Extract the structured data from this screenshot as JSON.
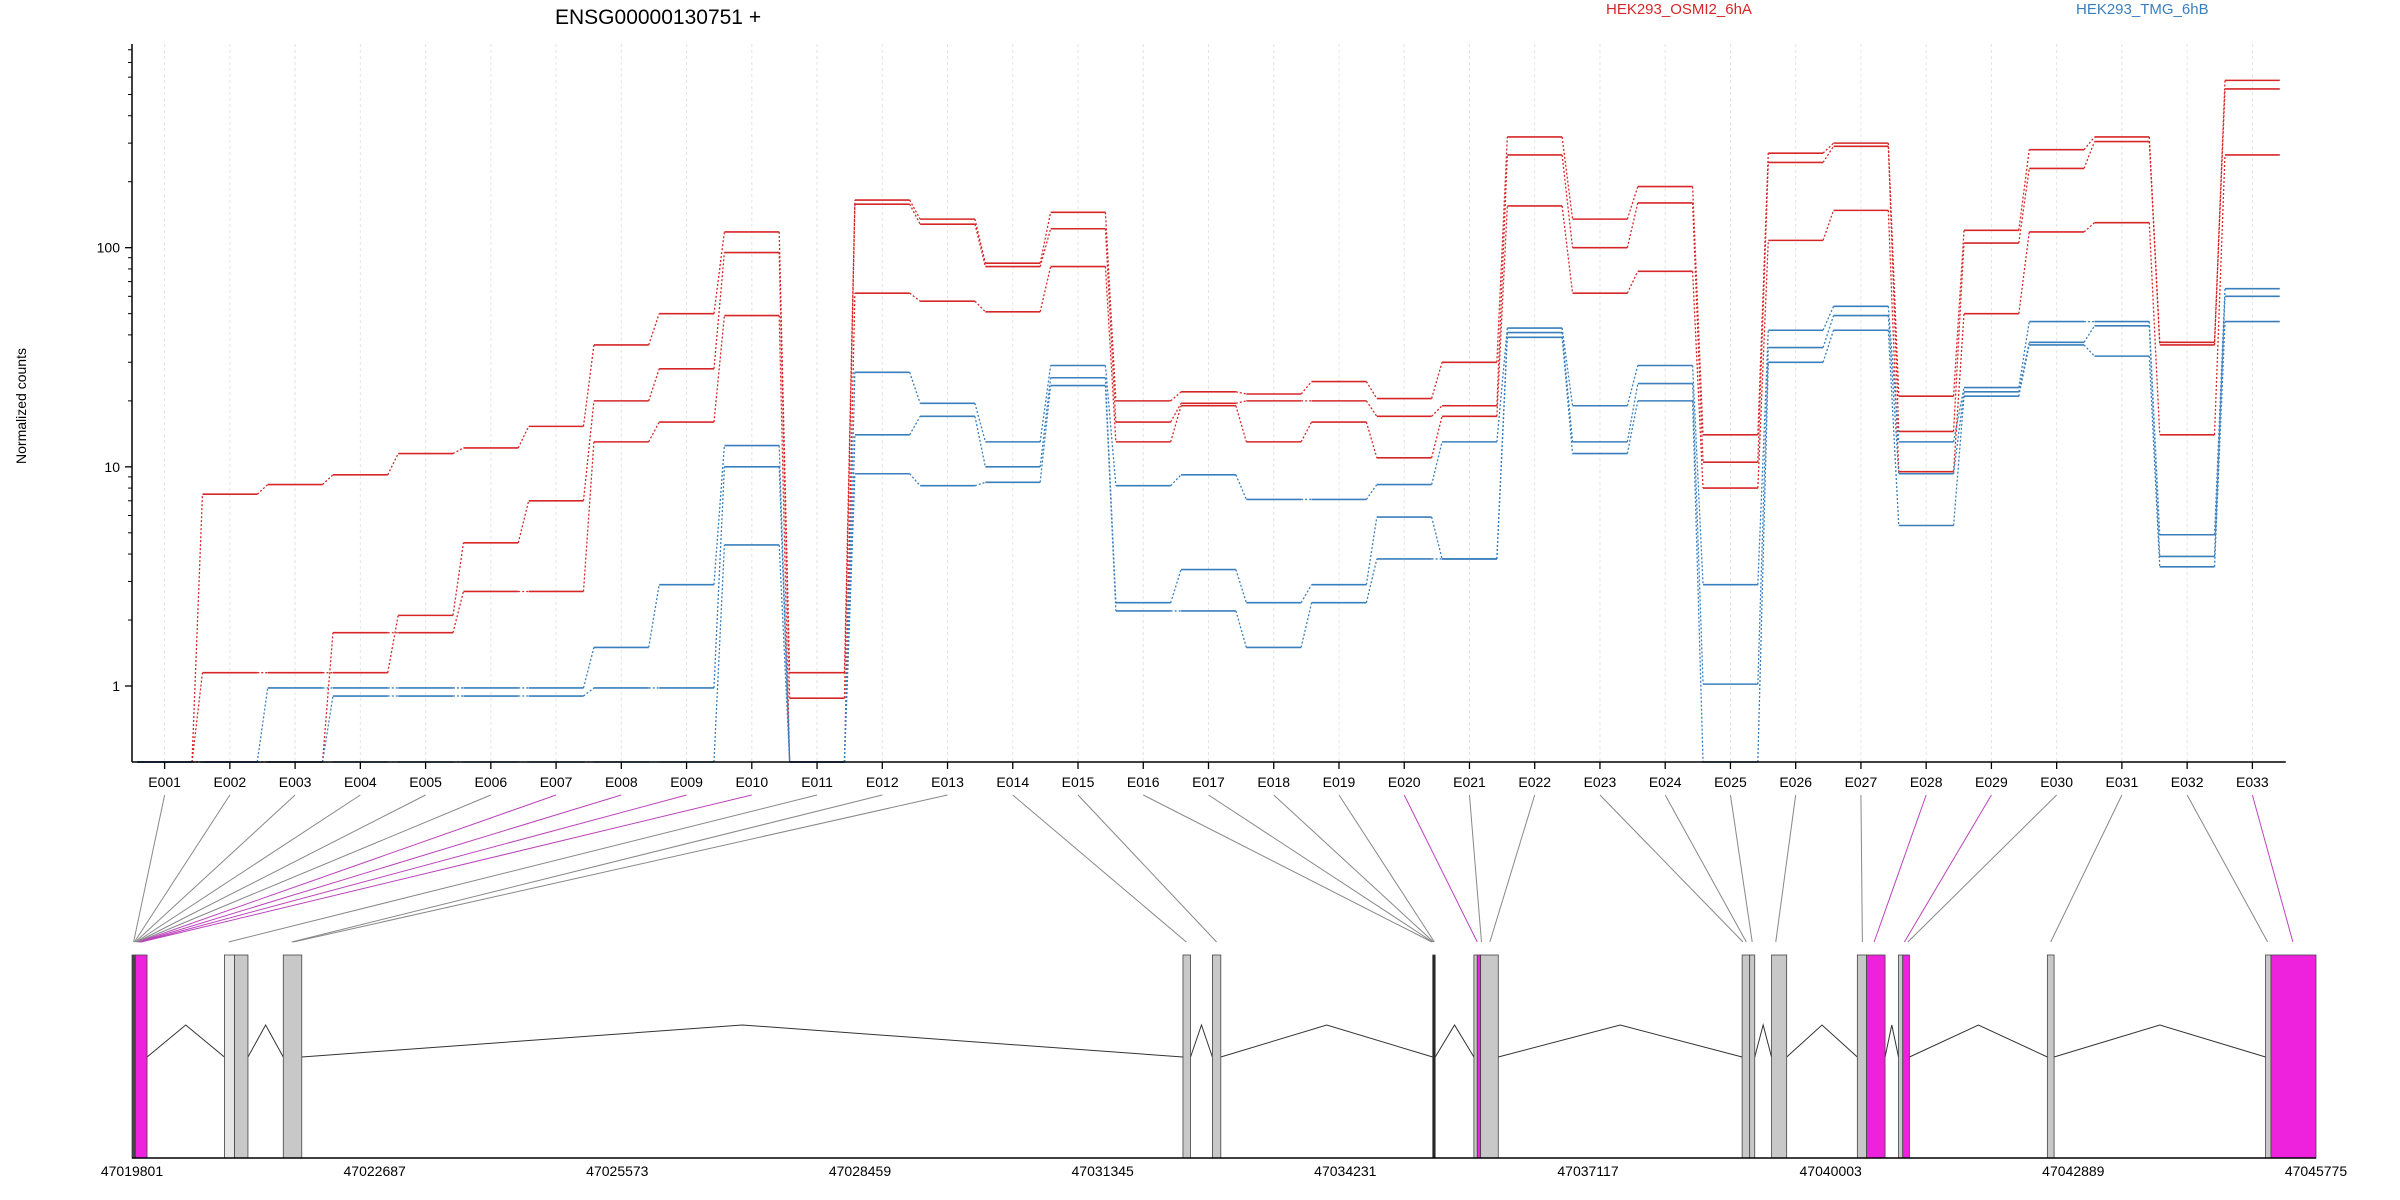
{
  "title": "ENSG00000130751 +",
  "ylabel": "Normalized counts",
  "legend": [
    {
      "name": "HEK293_OSMI2_6hA",
      "color": "#d62728"
    },
    {
      "name": "HEK293_TMG_6hB",
      "color": "#3a7fbd"
    }
  ],
  "chart_data": {
    "type": "line",
    "yscale": "log",
    "ylim": [
      0.45,
      850
    ],
    "yticks": [
      1,
      10,
      100
    ],
    "ytick_labels": [
      "1",
      "10",
      "100"
    ],
    "ylabel": "Normalized counts",
    "categories": [
      "E001",
      "E002",
      "E003",
      "E004",
      "E005",
      "E006",
      "E007",
      "E008",
      "E009",
      "E010",
      "E011",
      "E012",
      "E013",
      "E014",
      "E015",
      "E016",
      "E017",
      "E018",
      "E019",
      "E020",
      "E021",
      "E022",
      "E023",
      "E024",
      "E025",
      "E026",
      "E027",
      "E028",
      "E029",
      "E030",
      "E031",
      "E032",
      "E033"
    ],
    "series": [
      {
        "group": "HEK293_OSMI2_6hA",
        "color": "#d62728",
        "values": [
          0.45,
          7.5,
          8.3,
          9.2,
          11.5,
          12.2,
          15.3,
          36,
          50,
          118,
          1.15,
          165,
          135,
          85,
          145,
          20,
          22,
          21.5,
          24.5,
          20.5,
          30,
          320,
          135,
          190,
          14,
          270,
          300,
          21,
          120,
          280,
          320,
          37,
          580
        ]
      },
      {
        "group": "HEK293_OSMI2_6hA",
        "color": "#d62728",
        "values": [
          0.45,
          1.15,
          1.15,
          1.15,
          2.1,
          4.5,
          7,
          20,
          28,
          95,
          0.88,
          158,
          128,
          82,
          122,
          16,
          19.5,
          20,
          20,
          17,
          19,
          265,
          100,
          160,
          10.5,
          245,
          290,
          14.5,
          105,
          230,
          305,
          36,
          530
        ]
      },
      {
        "group": "HEK293_OSMI2_6hA",
        "color": "#d62728",
        "values": [
          0.45,
          0.45,
          0.45,
          1.75,
          1.75,
          2.7,
          2.7,
          13,
          16,
          49,
          0.45,
          62,
          57,
          51,
          82,
          13,
          19,
          13,
          16,
          11,
          17,
          155,
          62,
          78,
          8,
          108,
          148,
          9.5,
          50,
          118,
          130,
          14,
          265
        ]
      },
      {
        "group": "HEK293_TMG_6hB",
        "color": "#3a7fbd",
        "values": [
          0.45,
          0.45,
          0.98,
          0.98,
          0.98,
          0.98,
          0.98,
          1.5,
          2.9,
          12.5,
          0.45,
          27,
          19.5,
          13,
          29,
          8.2,
          9.2,
          7.1,
          7.1,
          8.3,
          13,
          43,
          19,
          29,
          2.9,
          42,
          54,
          13,
          23,
          46,
          46,
          4.9,
          65
        ]
      },
      {
        "group": "HEK293_TMG_6hB",
        "color": "#3a7fbd",
        "values": [
          0.45,
          0.45,
          0.45,
          0.9,
          0.9,
          0.9,
          0.9,
          0.98,
          0.98,
          10,
          0.45,
          14,
          17,
          10,
          25.5,
          2.4,
          3.4,
          2.4,
          2.9,
          5.9,
          3.8,
          41,
          13,
          24,
          1.02,
          35,
          49,
          9.3,
          22,
          37,
          44,
          3.9,
          60
        ]
      },
      {
        "group": "HEK293_TMG_6hB",
        "color": "#3a7fbd",
        "values": [
          0.45,
          0.45,
          0.45,
          0.45,
          0.45,
          0.45,
          0.45,
          0.45,
          0.45,
          4.4,
          0.45,
          9.3,
          8.2,
          8.5,
          23.5,
          2.2,
          2.2,
          1.5,
          2.4,
          3.8,
          3.8,
          39,
          11.5,
          20,
          0.45,
          30,
          42,
          5.4,
          21,
          36,
          32,
          3.5,
          46
        ]
      }
    ]
  },
  "gene_model": {
    "xrange": [
      47019801,
      47045775
    ],
    "coord_ticks": [
      {
        "value": 47019801,
        "label": "47019801"
      },
      {
        "value": 47022687,
        "label": "47022687"
      },
      {
        "value": 47025573,
        "label": "47025573"
      },
      {
        "value": 47028459,
        "label": "47028459"
      },
      {
        "value": 47031345,
        "label": "47031345"
      },
      {
        "value": 47034231,
        "label": "47034231"
      },
      {
        "value": 47037117,
        "label": "47037117"
      },
      {
        "value": 47040003,
        "label": "47040003"
      },
      {
        "value": 47042889,
        "label": "47042889"
      },
      {
        "value": 47045775,
        "label": "47045775"
      }
    ],
    "exon_blocks": [
      {
        "start": 47019801,
        "end": 47019842,
        "color": "#444444"
      },
      {
        "start": 47019842,
        "end": 47019980,
        "color": "#ee22dd"
      },
      {
        "start": 47020900,
        "end": 47021020,
        "color": "#e6e6e6"
      },
      {
        "start": 47021020,
        "end": 47021180,
        "color": "#c8c8c8"
      },
      {
        "start": 47021600,
        "end": 47021820,
        "color": "#c8c8c8"
      },
      {
        "start": 47032300,
        "end": 47032390,
        "color": "#c8c8c8"
      },
      {
        "start": 47032650,
        "end": 47032750,
        "color": "#c8c8c8"
      },
      {
        "start": 47035270,
        "end": 47035300,
        "color": "#222222"
      },
      {
        "start": 47035760,
        "end": 47035800,
        "color": "#c8c8c8"
      },
      {
        "start": 47035800,
        "end": 47035840,
        "color": "#ee22dd"
      },
      {
        "start": 47035840,
        "end": 47036050,
        "color": "#c8c8c8"
      },
      {
        "start": 47038950,
        "end": 47039040,
        "color": "#c8c8c8"
      },
      {
        "start": 47039040,
        "end": 47039100,
        "color": "#c8c8c8"
      },
      {
        "start": 47039300,
        "end": 47039480,
        "color": "#c8c8c8"
      },
      {
        "start": 47040320,
        "end": 47040430,
        "color": "#c8c8c8"
      },
      {
        "start": 47040430,
        "end": 47040650,
        "color": "#ee22dd"
      },
      {
        "start": 47040810,
        "end": 47040860,
        "color": "#c8c8c8"
      },
      {
        "start": 47040860,
        "end": 47040940,
        "color": "#ee22dd"
      },
      {
        "start": 47042580,
        "end": 47042660,
        "color": "#c8c8c8"
      },
      {
        "start": 47045175,
        "end": 47045240,
        "color": "#c8c8c8"
      },
      {
        "start": 47045240,
        "end": 47045775,
        "color": "#ee22dd"
      }
    ],
    "junctions": [
      [
        47019980,
        47020900
      ],
      [
        47021180,
        47021600
      ],
      [
        47021820,
        47032300
      ],
      [
        47032390,
        47032650
      ],
      [
        47032750,
        47035270
      ],
      [
        47035300,
        47035760
      ],
      [
        47036050,
        47038950
      ],
      [
        47039100,
        47039300
      ],
      [
        47039480,
        47040320
      ],
      [
        47040650,
        47040810
      ],
      [
        47040940,
        47042580
      ],
      [
        47042660,
        47045175
      ]
    ],
    "connectors": [
      {
        "exon": 0,
        "pos": 47019820,
        "color": "#888888"
      },
      {
        "exon": 1,
        "pos": 47019830,
        "color": "#888888"
      },
      {
        "exon": 2,
        "pos": 47019840,
        "color": "#888888"
      },
      {
        "exon": 3,
        "pos": 47019850,
        "color": "#888888"
      },
      {
        "exon": 4,
        "pos": 47019860,
        "color": "#888888"
      },
      {
        "exon": 5,
        "pos": 47019870,
        "color": "#888888"
      },
      {
        "exon": 6,
        "pos": 47019880,
        "color": "#bb44bb"
      },
      {
        "exon": 7,
        "pos": 47019890,
        "color": "#bb44bb"
      },
      {
        "exon": 8,
        "pos": 47019900,
        "color": "#bb44bb"
      },
      {
        "exon": 9,
        "pos": 47019910,
        "color": "#bb44bb"
      },
      {
        "exon": 10,
        "pos": 47020950,
        "color": "#888888"
      },
      {
        "exon": 11,
        "pos": 47021700,
        "color": "#888888"
      },
      {
        "exon": 12,
        "pos": 47021720,
        "color": "#888888"
      },
      {
        "exon": 13,
        "pos": 47032340,
        "color": "#888888"
      },
      {
        "exon": 14,
        "pos": 47032700,
        "color": "#888888"
      },
      {
        "exon": 15,
        "pos": 47035260,
        "color": "#888888"
      },
      {
        "exon": 16,
        "pos": 47035270,
        "color": "#888888"
      },
      {
        "exon": 17,
        "pos": 47035280,
        "color": "#888888"
      },
      {
        "exon": 18,
        "pos": 47035290,
        "color": "#888888"
      },
      {
        "exon": 19,
        "pos": 47035800,
        "color": "#bb44bb"
      },
      {
        "exon": 20,
        "pos": 47035850,
        "color": "#888888"
      },
      {
        "exon": 21,
        "pos": 47035950,
        "color": "#888888"
      },
      {
        "exon": 22,
        "pos": 47038960,
        "color": "#888888"
      },
      {
        "exon": 23,
        "pos": 47039000,
        "color": "#888888"
      },
      {
        "exon": 24,
        "pos": 47039070,
        "color": "#888888"
      },
      {
        "exon": 25,
        "pos": 47039350,
        "color": "#888888"
      },
      {
        "exon": 26,
        "pos": 47040380,
        "color": "#888888"
      },
      {
        "exon": 27,
        "pos": 47040520,
        "color": "#bb44bb"
      },
      {
        "exon": 28,
        "pos": 47040880,
        "color": "#bb44bb"
      },
      {
        "exon": 29,
        "pos": 47040920,
        "color": "#888888"
      },
      {
        "exon": 30,
        "pos": 47042620,
        "color": "#888888"
      },
      {
        "exon": 31,
        "pos": 47045200,
        "color": "#888888"
      },
      {
        "exon": 32,
        "pos": 47045500,
        "color": "#bb44bb"
      }
    ]
  }
}
